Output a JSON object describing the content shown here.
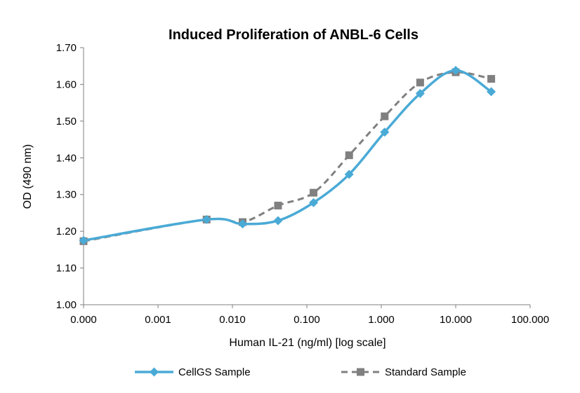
{
  "chart_data": {
    "type": "line",
    "title": "Induced Proliferation of ANBL-6 Cells",
    "xlabel": "Human IL-21 (ng/ml) [log scale]",
    "ylabel": "OD (490 nm)",
    "x_scale": "log",
    "x_tick_labels": [
      "0.000",
      "0.001",
      "0.010",
      "0.100",
      "1.000",
      "10.000",
      "100.000"
    ],
    "x_tick_values": [
      0.0001,
      0.001,
      0.01,
      0.1,
      1,
      10,
      100
    ],
    "xlim": [
      0.0001,
      100
    ],
    "ylim": [
      1.0,
      1.7
    ],
    "y_ticks": [
      1.0,
      1.1,
      1.2,
      1.3,
      1.4,
      1.5,
      1.6,
      1.7
    ],
    "y_tick_labels": [
      "1.00",
      "1.10",
      "1.20",
      "1.30",
      "1.40",
      "1.50",
      "1.60",
      "1.70"
    ],
    "grid": false,
    "legend": "bottom",
    "series": [
      {
        "name": "CellGS Sample",
        "color": "#4aaad6",
        "style": "solid",
        "marker": "diamond",
        "x": [
          0.0001,
          0.0045,
          0.0137,
          0.041,
          0.123,
          0.37,
          1.11,
          3.33,
          10,
          30
        ],
        "y": [
          1.175,
          1.232,
          1.22,
          1.229,
          1.278,
          1.355,
          1.47,
          1.575,
          1.638,
          1.58
        ]
      },
      {
        "name": "Standard Sample",
        "color": "#808080",
        "style": "dashed",
        "marker": "square",
        "x": [
          0.0001,
          0.0045,
          0.0137,
          0.041,
          0.123,
          0.37,
          1.11,
          3.33,
          10,
          30
        ],
        "y": [
          1.173,
          1.232,
          1.225,
          1.27,
          1.305,
          1.407,
          1.513,
          1.605,
          1.633,
          1.615
        ]
      }
    ]
  }
}
